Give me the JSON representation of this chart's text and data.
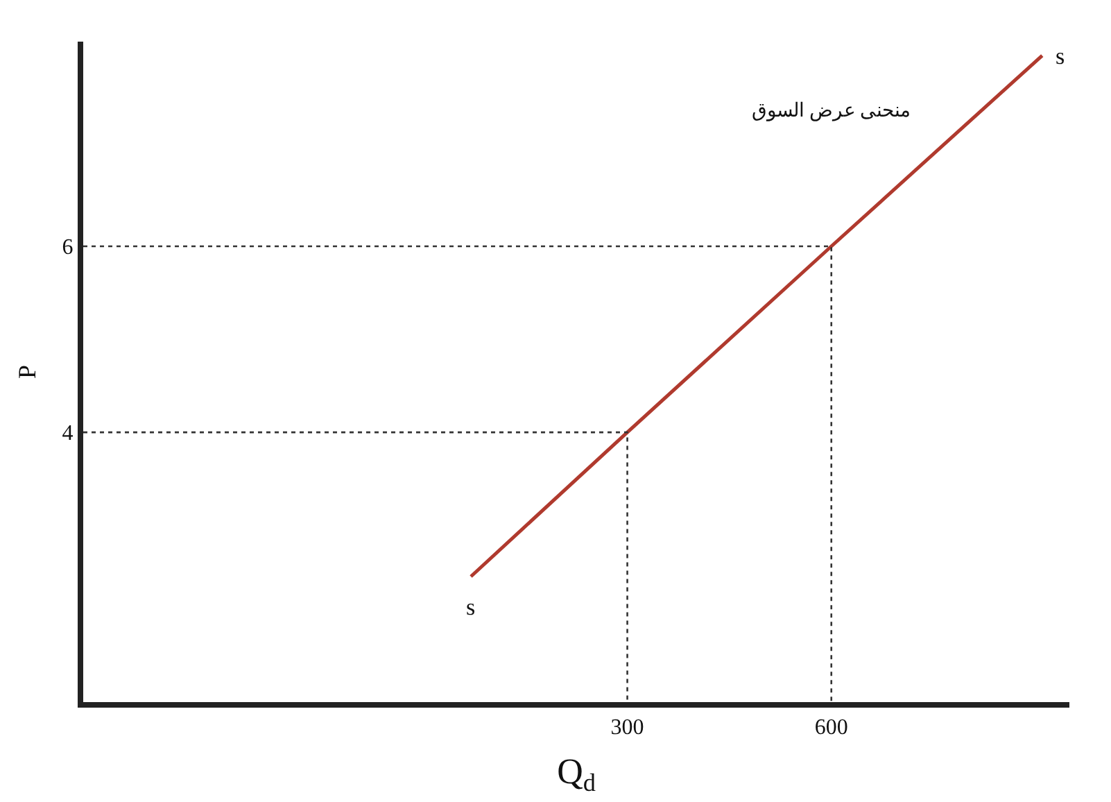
{
  "chart_data": {
    "type": "line",
    "xlabel": "Q$_{d}$",
    "ylabel": "P",
    "xlim": [
      -500,
      950
    ],
    "ylim": [
      1.1,
      8.2
    ],
    "xticks": [
      300,
      600
    ],
    "yticks": [
      4,
      6
    ],
    "marker": "none",
    "series": [
      {
        "color": "#b03a2e",
        "x": [
          70,
          300,
          600,
          910
        ],
        "values": [
          2.45,
          4,
          6,
          8.05
        ],
        "line_style": "solid"
      },
      {
        "color": "#333333",
        "x": [
          -500,
          300,
          300
        ],
        "values": [
          4,
          4,
          1.1
        ],
        "line_style": "dotted"
      },
      {
        "color": "#333333",
        "x": [
          -500,
          600,
          600
        ],
        "values": [
          6,
          6,
          1.1
        ],
        "line_style": "dotted"
      }
    ],
    "annotations": [
      "s",
      "s",
      "منحنى عرض السوق"
    ]
  }
}
